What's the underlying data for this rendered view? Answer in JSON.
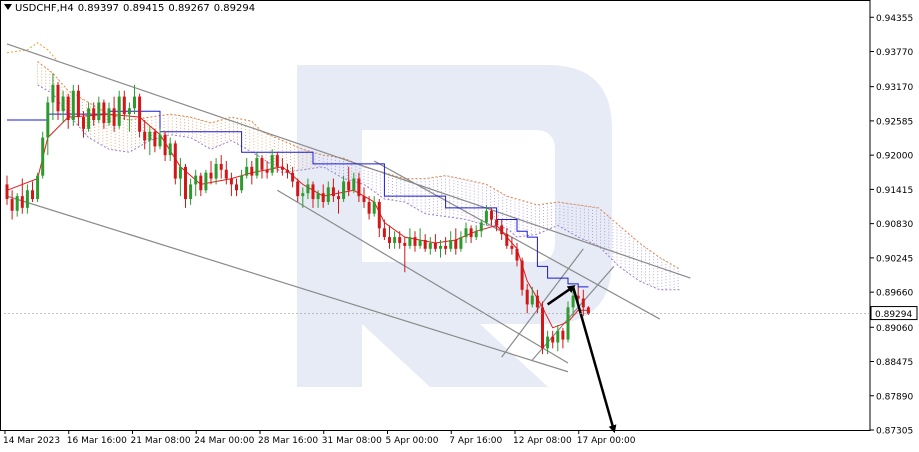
{
  "header": {
    "symbol_tf": "USDCHF,H4",
    "ohlc": [
      "0.89397",
      "0.89415",
      "0.89267",
      "0.89294"
    ]
  },
  "current_price_label": "0.89294",
  "watermark": "R",
  "chart_data": {
    "type": "candlestick",
    "title": "USDCHF,H4",
    "x_tick_labels": [
      "14 Mar 2023",
      "16 Mar 16:00",
      "21 Mar 08:00",
      "24 Mar 00:00",
      "28 Mar 16:00",
      "31 Mar 08:00",
      "5 Apr 00:00",
      "7 Apr 16:00",
      "12 Apr 08:00",
      "17 Apr 00:00"
    ],
    "y_tick_labels": [
      "0.94355",
      "0.93770",
      "0.93170",
      "0.92585",
      "0.92000",
      "0.91415",
      "0.90830",
      "0.90245",
      "0.89660",
      "0.89060",
      "0.88475",
      "0.87890",
      "0.87305"
    ],
    "ylim": [
      0.87305,
      0.9465
    ],
    "current_price": 0.89294,
    "grid": false,
    "colors": {
      "bull": "#2d9a2d",
      "bear": "#d11717",
      "tenkan": "#e31a1a",
      "kijun": "#1a1ad6",
      "senkou_a": "#e0894a",
      "senkou_b": "#9b7fd0",
      "chikou": "#e8a23a",
      "trendline": "#8a8a8a",
      "forecast_arrow": "#000000",
      "watermark": "#e7ebf5"
    },
    "candles": [
      [
        0,
        0.915,
        0.9165,
        0.9115,
        0.9125
      ],
      [
        1,
        0.9125,
        0.914,
        0.909,
        0.9105
      ],
      [
        2,
        0.9105,
        0.9135,
        0.9095,
        0.913
      ],
      [
        3,
        0.913,
        0.916,
        0.91,
        0.911
      ],
      [
        4,
        0.911,
        0.915,
        0.91,
        0.914
      ],
      [
        5,
        0.914,
        0.9155,
        0.912,
        0.9125
      ],
      [
        6,
        0.9125,
        0.917,
        0.912,
        0.9165
      ],
      [
        7,
        0.9165,
        0.924,
        0.916,
        0.923
      ],
      [
        8,
        0.923,
        0.93,
        0.92,
        0.929
      ],
      [
        9,
        0.929,
        0.934,
        0.926,
        0.932
      ],
      [
        10,
        0.932,
        0.9325,
        0.926,
        0.9275
      ],
      [
        11,
        0.9275,
        0.931,
        0.9255,
        0.93
      ],
      [
        12,
        0.93,
        0.9305,
        0.9245,
        0.926
      ],
      [
        13,
        0.926,
        0.932,
        0.925,
        0.931
      ],
      [
        14,
        0.931,
        0.932,
        0.925,
        0.9265
      ],
      [
        15,
        0.9265,
        0.9275,
        0.923,
        0.9245
      ],
      [
        16,
        0.9245,
        0.929,
        0.924,
        0.928
      ],
      [
        17,
        0.928,
        0.929,
        0.925,
        0.926
      ],
      [
        18,
        0.926,
        0.93,
        0.9255,
        0.929
      ],
      [
        19,
        0.929,
        0.9295,
        0.9245,
        0.9255
      ],
      [
        20,
        0.9255,
        0.929,
        0.925,
        0.928
      ],
      [
        21,
        0.928,
        0.93,
        0.924,
        0.925
      ],
      [
        22,
        0.925,
        0.931,
        0.9245,
        0.93
      ],
      [
        23,
        0.93,
        0.931,
        0.926,
        0.927
      ],
      [
        24,
        0.927,
        0.929,
        0.924,
        0.928
      ],
      [
        25,
        0.928,
        0.932,
        0.927,
        0.93
      ],
      [
        26,
        0.93,
        0.9305,
        0.923,
        0.924
      ],
      [
        27,
        0.924,
        0.926,
        0.921,
        0.9225
      ],
      [
        28,
        0.9225,
        0.925,
        0.92,
        0.924
      ],
      [
        29,
        0.924,
        0.9245,
        0.9205,
        0.9215
      ],
      [
        30,
        0.9215,
        0.9245,
        0.921,
        0.9235
      ],
      [
        31,
        0.9235,
        0.924,
        0.919,
        0.92
      ],
      [
        32,
        0.92,
        0.923,
        0.919,
        0.922
      ],
      [
        33,
        0.922,
        0.9225,
        0.915,
        0.916
      ],
      [
        34,
        0.916,
        0.9195,
        0.913,
        0.918
      ],
      [
        35,
        0.918,
        0.9185,
        0.911,
        0.9125
      ],
      [
        36,
        0.9125,
        0.916,
        0.9115,
        0.915
      ],
      [
        37,
        0.915,
        0.9175,
        0.913,
        0.9165
      ],
      [
        38,
        0.9165,
        0.917,
        0.913,
        0.914
      ],
      [
        39,
        0.914,
        0.9175,
        0.9135,
        0.917
      ],
      [
        40,
        0.917,
        0.919,
        0.915,
        0.916
      ],
      [
        41,
        0.916,
        0.9195,
        0.915,
        0.9185
      ],
      [
        42,
        0.9185,
        0.92,
        0.916,
        0.9175
      ],
      [
        43,
        0.9175,
        0.919,
        0.915,
        0.916
      ],
      [
        44,
        0.916,
        0.917,
        0.913,
        0.915
      ],
      [
        45,
        0.915,
        0.916,
        0.913,
        0.914
      ],
      [
        46,
        0.914,
        0.9175,
        0.9135,
        0.9165
      ],
      [
        47,
        0.9165,
        0.9195,
        0.916,
        0.918
      ],
      [
        48,
        0.918,
        0.919,
        0.915,
        0.9165
      ],
      [
        49,
        0.9165,
        0.9205,
        0.916,
        0.9195
      ],
      [
        50,
        0.9195,
        0.92,
        0.916,
        0.9175
      ],
      [
        51,
        0.9175,
        0.919,
        0.916,
        0.917
      ],
      [
        52,
        0.917,
        0.921,
        0.9165,
        0.92
      ],
      [
        53,
        0.92,
        0.9205,
        0.917,
        0.918
      ],
      [
        54,
        0.918,
        0.9195,
        0.9165,
        0.9175
      ],
      [
        55,
        0.9175,
        0.9185,
        0.916,
        0.917
      ],
      [
        56,
        0.917,
        0.918,
        0.9145,
        0.9155
      ],
      [
        57,
        0.9155,
        0.916,
        0.912,
        0.913
      ],
      [
        58,
        0.913,
        0.9145,
        0.911,
        0.9135
      ],
      [
        59,
        0.9135,
        0.916,
        0.9125,
        0.915
      ],
      [
        60,
        0.915,
        0.9155,
        0.911,
        0.9125
      ],
      [
        61,
        0.9125,
        0.914,
        0.911,
        0.9135
      ],
      [
        62,
        0.9135,
        0.915,
        0.911,
        0.912
      ],
      [
        63,
        0.912,
        0.9155,
        0.9115,
        0.9145
      ],
      [
        64,
        0.9145,
        0.916,
        0.912,
        0.913
      ],
      [
        65,
        0.913,
        0.914,
        0.91,
        0.9125
      ],
      [
        66,
        0.9125,
        0.9165,
        0.912,
        0.9155
      ],
      [
        67,
        0.9155,
        0.918,
        0.913,
        0.914
      ],
      [
        68,
        0.914,
        0.917,
        0.9135,
        0.916
      ],
      [
        69,
        0.916,
        0.917,
        0.912,
        0.913
      ],
      [
        70,
        0.913,
        0.9145,
        0.911,
        0.912
      ],
      [
        71,
        0.912,
        0.913,
        0.909,
        0.91
      ],
      [
        72,
        0.91,
        0.913,
        0.9095,
        0.912
      ],
      [
        73,
        0.912,
        0.9125,
        0.906,
        0.9075
      ],
      [
        74,
        0.9075,
        0.909,
        0.9055,
        0.906
      ],
      [
        75,
        0.906,
        0.908,
        0.904,
        0.905
      ],
      [
        76,
        0.905,
        0.907,
        0.904,
        0.906
      ],
      [
        77,
        0.906,
        0.907,
        0.904,
        0.905
      ],
      [
        78,
        0.905,
        0.906,
        0.9,
        0.9045
      ],
      [
        79,
        0.9045,
        0.9075,
        0.904,
        0.906
      ],
      [
        80,
        0.906,
        0.907,
        0.9035,
        0.9045
      ],
      [
        81,
        0.9045,
        0.9075,
        0.904,
        0.9055
      ],
      [
        82,
        0.9055,
        0.9065,
        0.9035,
        0.904
      ],
      [
        83,
        0.904,
        0.906,
        0.903,
        0.905
      ],
      [
        84,
        0.905,
        0.9065,
        0.9035,
        0.904
      ],
      [
        85,
        0.904,
        0.9055,
        0.9025,
        0.9045
      ],
      [
        86,
        0.9045,
        0.906,
        0.903,
        0.904
      ],
      [
        87,
        0.904,
        0.907,
        0.9035,
        0.9055
      ],
      [
        88,
        0.9055,
        0.9075,
        0.903,
        0.904
      ],
      [
        89,
        0.904,
        0.907,
        0.9035,
        0.906
      ],
      [
        90,
        0.906,
        0.9085,
        0.905,
        0.9075
      ],
      [
        91,
        0.9075,
        0.908,
        0.905,
        0.906
      ],
      [
        92,
        0.906,
        0.908,
        0.9055,
        0.907
      ],
      [
        93,
        0.907,
        0.909,
        0.906,
        0.9085
      ],
      [
        94,
        0.9085,
        0.9115,
        0.908,
        0.9105
      ],
      [
        95,
        0.9105,
        0.911,
        0.908,
        0.909
      ],
      [
        96,
        0.909,
        0.91,
        0.907,
        0.908
      ],
      [
        97,
        0.908,
        0.909,
        0.9055,
        0.9065
      ],
      [
        98,
        0.9065,
        0.9075,
        0.904,
        0.9045
      ],
      [
        99,
        0.9045,
        0.906,
        0.903,
        0.904
      ],
      [
        100,
        0.904,
        0.905,
        0.901,
        0.902
      ],
      [
        101,
        0.902,
        0.9025,
        0.896,
        0.897
      ],
      [
        102,
        0.897,
        0.898,
        0.893,
        0.8945
      ],
      [
        103,
        0.8945,
        0.8975,
        0.894,
        0.896
      ],
      [
        104,
        0.896,
        0.897,
        0.893,
        0.894
      ],
      [
        105,
        0.894,
        0.895,
        0.886,
        0.887
      ],
      [
        106,
        0.887,
        0.89,
        0.886,
        0.889
      ],
      [
        107,
        0.889,
        0.89,
        0.887,
        0.888
      ],
      [
        108,
        0.888,
        0.891,
        0.8865,
        0.89
      ],
      [
        109,
        0.89,
        0.8905,
        0.887,
        0.8885
      ],
      [
        110,
        0.8885,
        0.895,
        0.888,
        0.894
      ],
      [
        111,
        0.894,
        0.897,
        0.8925,
        0.896
      ],
      [
        112,
        0.896,
        0.8975,
        0.894,
        0.8955
      ],
      [
        113,
        0.8955,
        0.897,
        0.8925,
        0.894
      ],
      [
        114,
        0.894,
        0.8942,
        0.8927,
        0.8929
      ]
    ],
    "tenkan_sen": [
      [
        0,
        0.914
      ],
      [
        6,
        0.916
      ],
      [
        8,
        0.923
      ],
      [
        12,
        0.9265
      ],
      [
        20,
        0.927
      ],
      [
        26,
        0.9265
      ],
      [
        30,
        0.9235
      ],
      [
        34,
        0.918
      ],
      [
        38,
        0.915
      ],
      [
        44,
        0.916
      ],
      [
        48,
        0.917
      ],
      [
        54,
        0.918
      ],
      [
        58,
        0.915
      ],
      [
        62,
        0.913
      ],
      [
        68,
        0.914
      ],
      [
        72,
        0.912
      ],
      [
        74,
        0.9085
      ],
      [
        78,
        0.906
      ],
      [
        84,
        0.905
      ],
      [
        88,
        0.9055
      ],
      [
        92,
        0.907
      ],
      [
        96,
        0.908
      ],
      [
        100,
        0.904
      ],
      [
        102,
        0.8985
      ],
      [
        105,
        0.894
      ],
      [
        107,
        0.8905
      ],
      [
        110,
        0.8915
      ],
      [
        112,
        0.8935
      ],
      [
        114,
        0.8935
      ]
    ],
    "kijun_sen": [
      [
        0,
        0.926
      ],
      [
        6,
        0.926
      ],
      [
        8,
        0.927
      ],
      [
        12,
        0.927
      ],
      [
        20,
        0.9275
      ],
      [
        28,
        0.9275
      ],
      [
        30,
        0.924
      ],
      [
        44,
        0.924
      ],
      [
        46,
        0.9205
      ],
      [
        58,
        0.9205
      ],
      [
        60,
        0.9185
      ],
      [
        72,
        0.9185
      ],
      [
        74,
        0.913
      ],
      [
        84,
        0.913
      ],
      [
        86,
        0.911
      ],
      [
        94,
        0.911
      ],
      [
        96,
        0.909
      ],
      [
        100,
        0.907
      ],
      [
        102,
        0.906
      ],
      [
        104,
        0.901
      ],
      [
        106,
        0.899
      ],
      [
        110,
        0.898
      ],
      [
        112,
        0.8975
      ],
      [
        114,
        0.8975
      ]
    ],
    "chikou_span": [
      [
        0,
        0.9375
      ],
      [
        4,
        0.938
      ],
      [
        6,
        0.9392
      ],
      [
        8,
        0.938
      ],
      [
        10,
        0.936
      ]
    ],
    "cloud_upper": [
      [
        6,
        0.936
      ],
      [
        9,
        0.934
      ],
      [
        12,
        0.931
      ],
      [
        16,
        0.929
      ],
      [
        20,
        0.927
      ],
      [
        24,
        0.926
      ],
      [
        28,
        0.9265
      ],
      [
        32,
        0.927
      ],
      [
        36,
        0.9265
      ],
      [
        40,
        0.9255
      ],
      [
        44,
        0.9265
      ],
      [
        48,
        0.9258
      ],
      [
        50,
        0.924
      ],
      [
        54,
        0.9225
      ],
      [
        58,
        0.921
      ],
      [
        62,
        0.92
      ],
      [
        66,
        0.9195
      ],
      [
        70,
        0.918
      ],
      [
        74,
        0.917
      ],
      [
        78,
        0.916
      ],
      [
        82,
        0.916
      ],
      [
        86,
        0.9165
      ],
      [
        90,
        0.9158
      ],
      [
        94,
        0.915
      ],
      [
        98,
        0.913
      ],
      [
        100,
        0.9125
      ],
      [
        104,
        0.9115
      ],
      [
        108,
        0.912
      ],
      [
        112,
        0.9115
      ],
      [
        116,
        0.911
      ],
      [
        120,
        0.908
      ],
      [
        124,
        0.905
      ],
      [
        128,
        0.9025
      ],
      [
        132,
        0.9005
      ]
    ],
    "cloud_lower": [
      [
        6,
        0.932
      ],
      [
        9,
        0.9305
      ],
      [
        12,
        0.927
      ],
      [
        16,
        0.923
      ],
      [
        20,
        0.921
      ],
      [
        24,
        0.9205
      ],
      [
        28,
        0.9225
      ],
      [
        32,
        0.9235
      ],
      [
        36,
        0.923
      ],
      [
        40,
        0.921
      ],
      [
        44,
        0.9225
      ],
      [
        48,
        0.9205
      ],
      [
        50,
        0.9195
      ],
      [
        54,
        0.917
      ],
      [
        58,
        0.9175
      ],
      [
        62,
        0.918
      ],
      [
        66,
        0.916
      ],
      [
        70,
        0.915
      ],
      [
        74,
        0.9125
      ],
      [
        78,
        0.912
      ],
      [
        82,
        0.91
      ],
      [
        86,
        0.9095
      ],
      [
        90,
        0.909
      ],
      [
        94,
        0.908
      ],
      [
        98,
        0.9075
      ],
      [
        100,
        0.906
      ],
      [
        104,
        0.9065
      ],
      [
        108,
        0.908
      ],
      [
        112,
        0.906
      ],
      [
        116,
        0.9045
      ],
      [
        120,
        0.901
      ],
      [
        124,
        0.8985
      ],
      [
        128,
        0.897
      ],
      [
        132,
        0.897
      ]
    ],
    "trendlines": [
      {
        "from": [
          0,
          0.939
        ],
        "to": [
          134,
          0.899
        ]
      },
      {
        "from": [
          0,
          0.913
        ],
        "to": [
          110,
          0.883
        ]
      },
      {
        "from": [
          53,
          0.914
        ],
        "to": [
          110,
          0.8845
        ]
      },
      {
        "from": [
          72,
          0.919
        ],
        "to": [
          128,
          0.892
        ]
      },
      {
        "from": [
          97,
          0.8855
        ],
        "to": [
          113,
          0.904
        ]
      },
      {
        "from": [
          103,
          0.885
        ],
        "to": [
          119,
          0.901
        ]
      }
    ],
    "forecast_path": [
      [
        106,
        0.8945
      ],
      [
        111,
        0.8975
      ],
      [
        119,
        0.873
      ]
    ]
  }
}
